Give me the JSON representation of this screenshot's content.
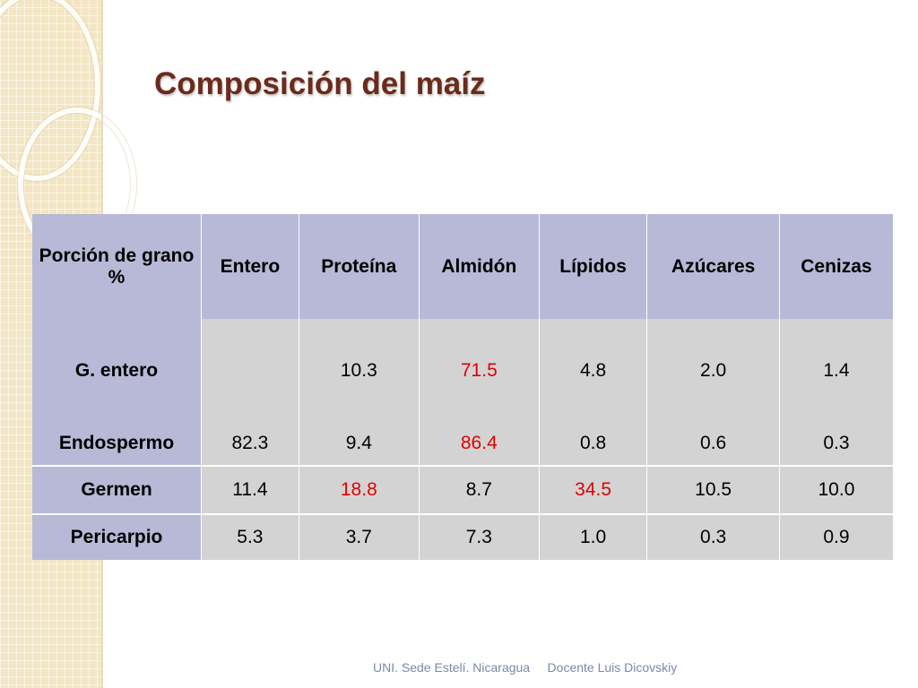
{
  "slide": {
    "title": "Composición del maíz",
    "footer": {
      "institution": "UNI. Sede Estelí. Nicaragua",
      "author": "Docente Luis Dicovskiy"
    }
  },
  "table": {
    "headers": [
      "Porción de grano %",
      "Entero",
      "Proteína",
      "Almidón",
      "Lípidos",
      "Azúcares",
      "Cenizas"
    ],
    "rows": [
      {
        "label": "G. entero",
        "cells": [
          "",
          "10.3",
          "71.5",
          "4.8",
          "2.0",
          "1.4"
        ]
      },
      {
        "label": "Endospermo",
        "cells": [
          "82.3",
          "9.4",
          "86.4",
          "0.8",
          "0.6",
          "0.3"
        ]
      },
      {
        "label": "Germen",
        "cells": [
          "11.4",
          "18.8",
          "8.7",
          "34.5",
          "10.5",
          "10.0"
        ]
      },
      {
        "label": "Pericarpio",
        "cells": [
          "5.3",
          "3.7",
          "7.3",
          "1.0",
          "0.3",
          "0.9"
        ]
      }
    ],
    "highlight_color": "#e00000",
    "header_bg": "#b8b9d6",
    "cell_bg": "#d3d3d3"
  }
}
